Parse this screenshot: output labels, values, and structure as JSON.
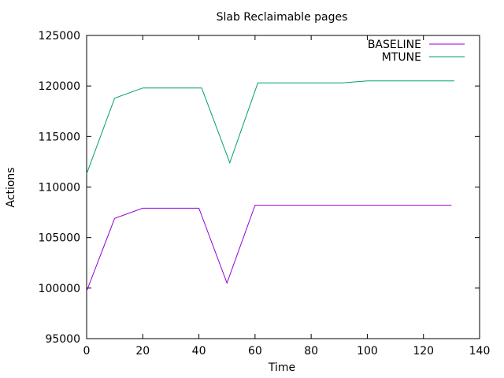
{
  "chart_data": {
    "type": "line",
    "title": "Slab Reclaimable pages",
    "xlabel": "Time",
    "ylabel": "Actions",
    "xlim": [
      0,
      140
    ],
    "ylim": [
      95000,
      125000
    ],
    "x_ticks": [
      0,
      20,
      40,
      60,
      80,
      100,
      120,
      140
    ],
    "y_ticks": [
      95000,
      100000,
      105000,
      110000,
      115000,
      120000,
      125000
    ],
    "x_tick_labels": [
      "0",
      "20",
      "40",
      "60",
      "80",
      "100",
      "120",
      "140"
    ],
    "y_tick_labels": [
      "95000",
      "100000",
      "105000",
      "110000",
      "115000",
      "120000",
      "125000"
    ],
    "grid": false,
    "legend_position": "top-right",
    "series": [
      {
        "name": "BASELINE",
        "color": "#9400d3",
        "points": [
          [
            0,
            99700
          ],
          [
            10,
            106900
          ],
          [
            20,
            107900
          ],
          [
            30,
            107900
          ],
          [
            40,
            107900
          ],
          [
            50,
            100500
          ],
          [
            60,
            108200
          ],
          [
            70,
            108200
          ],
          [
            80,
            108200
          ],
          [
            90,
            108200
          ],
          [
            100,
            108200
          ],
          [
            110,
            108200
          ],
          [
            120,
            108200
          ],
          [
            130,
            108200
          ]
        ]
      },
      {
        "name": "MTUNE",
        "color": "#009e73",
        "points": [
          [
            0,
            111300
          ],
          [
            10,
            118800
          ],
          [
            20,
            119800
          ],
          [
            30,
            119800
          ],
          [
            41,
            119800
          ],
          [
            51,
            112400
          ],
          [
            61,
            120300
          ],
          [
            71,
            120300
          ],
          [
            81,
            120300
          ],
          [
            91,
            120300
          ],
          [
            100,
            120500
          ],
          [
            110,
            120500
          ],
          [
            120,
            120500
          ],
          [
            131,
            120500
          ]
        ]
      }
    ]
  }
}
